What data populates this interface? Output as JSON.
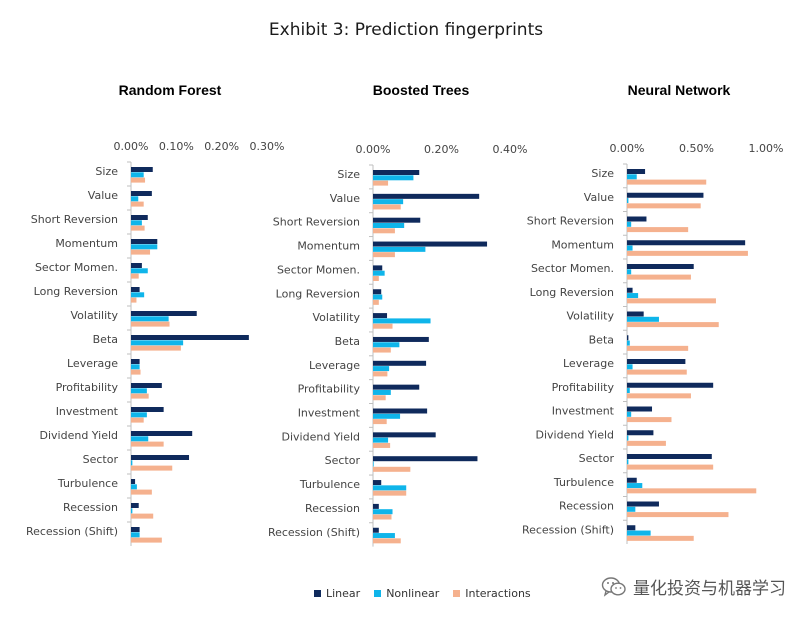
{
  "title": "Exhibit 3: Prediction fingerprints",
  "legend": [
    {
      "label": "Linear",
      "color": "#0f2a5c"
    },
    {
      "label": "Nonlinear",
      "color": "#0fb5ea"
    },
    {
      "label": "Interactions",
      "color": "#f5b18e"
    }
  ],
  "watermark": {
    "text": "量化投资与机器学习",
    "icon": "wechat-icon"
  },
  "chart_data": [
    {
      "type": "bar",
      "orientation": "horizontal",
      "title": "Random Forest",
      "xlim": [
        0,
        0.3
      ],
      "ticks": [
        0,
        0.1,
        0.2,
        0.3
      ],
      "tick_labels": [
        "0.00%",
        "0.10%",
        "0.20%",
        "0.30%"
      ],
      "categories": [
        "Size",
        "Value",
        "Short Reversion",
        "Momentum",
        "Sector Momen.",
        "Long Reversion",
        "Volatility",
        "Beta",
        "Leverage",
        "Profitability",
        "Investment",
        "Dividend Yield",
        "Sector",
        "Turbulence",
        "Recession",
        "Recession (Shift)"
      ],
      "series": [
        {
          "name": "Linear",
          "values": [
            0.048,
            0.046,
            0.037,
            0.058,
            0.024,
            0.019,
            0.145,
            0.26,
            0.019,
            0.068,
            0.072,
            0.135,
            0.128,
            0.009,
            0.017,
            0.019
          ]
        },
        {
          "name": "Nonlinear",
          "values": [
            0.028,
            0.016,
            0.024,
            0.058,
            0.037,
            0.029,
            0.083,
            0.115,
            0.019,
            0.035,
            0.035,
            0.038,
            0.003,
            0.013,
            0.003,
            0.019
          ]
        },
        {
          "name": "Interactions",
          "values": [
            0.031,
            0.028,
            0.03,
            0.042,
            0.017,
            0.012,
            0.085,
            0.11,
            0.021,
            0.039,
            0.028,
            0.072,
            0.091,
            0.046,
            0.049,
            0.068
          ]
        }
      ]
    },
    {
      "type": "bar",
      "orientation": "horizontal",
      "title": "Boosted Trees",
      "xlim": [
        0,
        0.4
      ],
      "ticks": [
        0,
        0.2,
        0.4
      ],
      "tick_labels": [
        "0.00%",
        "0.20%",
        "0.40%"
      ],
      "categories": [
        "Size",
        "Value",
        "Short Reversion",
        "Momentum",
        "Sector Momen.",
        "Long Reversion",
        "Volatility",
        "Beta",
        "Leverage",
        "Profitability",
        "Investment",
        "Dividend Yield",
        "Sector",
        "Turbulence",
        "Recession",
        "Recession (Shift)"
      ],
      "series": [
        {
          "name": "Linear",
          "values": [
            0.135,
            0.31,
            0.138,
            0.333,
            0.027,
            0.024,
            0.041,
            0.163,
            0.155,
            0.135,
            0.158,
            0.183,
            0.305,
            0.024,
            0.017,
            0.017
          ]
        },
        {
          "name": "Nonlinear",
          "values": [
            0.118,
            0.088,
            0.091,
            0.153,
            0.034,
            0.027,
            0.168,
            0.077,
            0.047,
            0.052,
            0.079,
            0.044,
            0.002,
            0.097,
            0.057,
            0.064
          ]
        },
        {
          "name": "Interactions",
          "values": [
            0.044,
            0.081,
            0.064,
            0.064,
            0.017,
            0.017,
            0.057,
            0.052,
            0.042,
            0.037,
            0.04,
            0.05,
            0.109,
            0.097,
            0.054,
            0.081
          ]
        }
      ]
    },
    {
      "type": "bar",
      "orientation": "horizontal",
      "title": "Neural Network",
      "xlim": [
        0,
        1.0
      ],
      "ticks": [
        0,
        0.5,
        1.0
      ],
      "tick_labels": [
        "0.00%",
        "0.50%",
        "1.00%"
      ],
      "categories": [
        "Size",
        "Value",
        "Short Reversion",
        "Momentum",
        "Sector Momen.",
        "Long Reversion",
        "Volatility",
        "Beta",
        "Leverage",
        "Profitability",
        "Investment",
        "Dividend Yield",
        "Sector",
        "Turbulence",
        "Recession",
        "Recession (Shift)"
      ],
      "series": [
        {
          "name": "Linear",
          "values": [
            0.13,
            0.55,
            0.14,
            0.85,
            0.48,
            0.04,
            0.12,
            0.01,
            0.42,
            0.62,
            0.18,
            0.19,
            0.61,
            0.07,
            0.23,
            0.06
          ]
        },
        {
          "name": "Nonlinear",
          "values": [
            0.07,
            0.01,
            0.03,
            0.04,
            0.03,
            0.08,
            0.23,
            0.02,
            0.04,
            0.02,
            0.03,
            0.01,
            0.01,
            0.11,
            0.06,
            0.17
          ]
        },
        {
          "name": "Interactions",
          "values": [
            0.57,
            0.53,
            0.44,
            0.87,
            0.46,
            0.64,
            0.66,
            0.44,
            0.43,
            0.46,
            0.32,
            0.28,
            0.62,
            0.93,
            0.73,
            0.48
          ]
        }
      ]
    }
  ]
}
